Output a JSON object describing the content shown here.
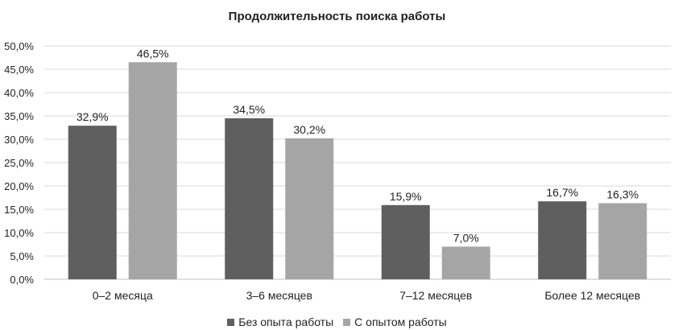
{
  "chart_data": {
    "type": "bar",
    "title": "Продолжительность поиска работы",
    "categories": [
      "0–2 месяца",
      "3–6 месяцев",
      "7–12 месяцев",
      "Более 12 месяцев"
    ],
    "series": [
      {
        "name": "Без опыта работы",
        "values": [
          32.9,
          34.5,
          15.9,
          16.7
        ],
        "labels": [
          "32,9%",
          "34,5%",
          "15,9%",
          "16,7%"
        ],
        "color": "#5f5f5f"
      },
      {
        "name": "С опытом работы",
        "values": [
          46.5,
          30.2,
          7.0,
          16.3
        ],
        "labels": [
          "46,5%",
          "30,2%",
          "7,0%",
          "16,3%"
        ],
        "color": "#a5a5a5"
      }
    ],
    "ylim": [
      0,
      50
    ],
    "yticks": [
      "0,0%",
      "5,0%",
      "10,0%",
      "15,0%",
      "20,0%",
      "25,0%",
      "30,0%",
      "35,0%",
      "40,0%",
      "45,0%",
      "50,0%"
    ],
    "grid": true,
    "legend_position": "bottom"
  }
}
